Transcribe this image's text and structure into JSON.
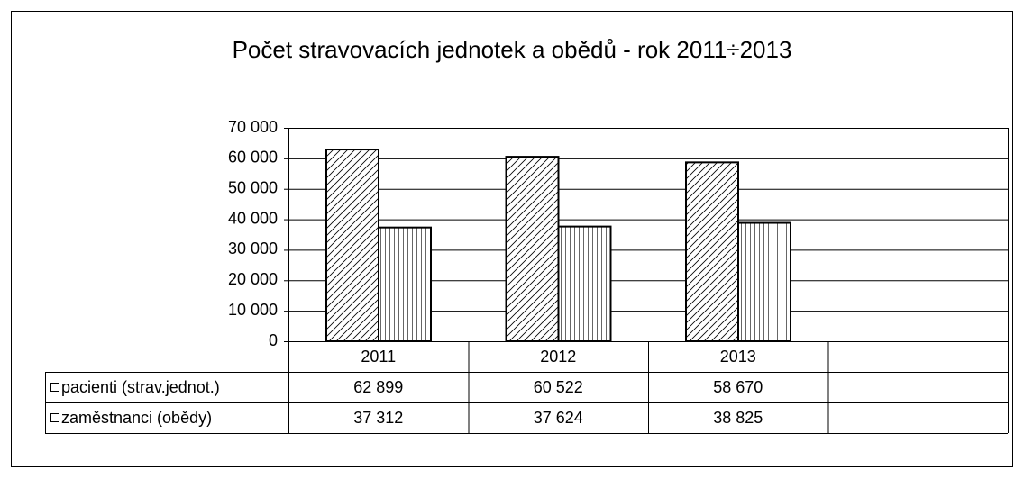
{
  "chart_data": {
    "type": "bar",
    "title": "Počet stravovacích jednotek a obědů - rok 2011÷2013",
    "categories": [
      "2011",
      "2012",
      "2013",
      null
    ],
    "series": [
      {
        "name": "pacienti (strav.jednot.)",
        "color": "#000000",
        "pattern": "diagonal",
        "values": [
          62899,
          60522,
          58670,
          null
        ],
        "value_labels": [
          "62 899",
          "60 522",
          "58 670",
          null
        ]
      },
      {
        "name": "zaměstnanci (obědy)",
        "color": "#000000",
        "pattern": "vertical",
        "values": [
          37312,
          37624,
          38825,
          null
        ],
        "value_labels": [
          "37 312",
          "37 624",
          "38 825",
          null
        ]
      }
    ],
    "ylim": [
      0,
      70000
    ],
    "yticks": [
      0,
      {
        "value": 10000,
        "label": "10 000"
      },
      {
        "value": 20000,
        "label": "20 000"
      },
      {
        "value": 30000,
        "label": "30 000"
      },
      {
        "value": 40000,
        "label": "40 000"
      },
      {
        "value": 50000,
        "label": "50 000"
      },
      {
        "value": 60000,
        "label": "60 000"
      },
      {
        "value": 70000,
        "label": "70 000"
      }
    ],
    "grid": true,
    "data_table": true
  }
}
